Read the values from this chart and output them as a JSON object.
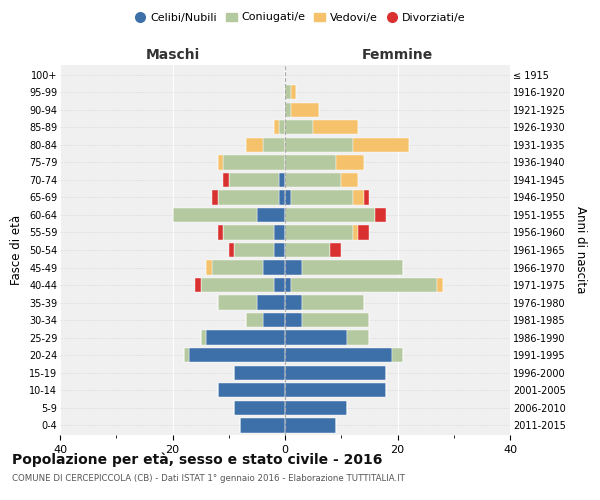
{
  "age_groups": [
    "0-4",
    "5-9",
    "10-14",
    "15-19",
    "20-24",
    "25-29",
    "30-34",
    "35-39",
    "40-44",
    "45-49",
    "50-54",
    "55-59",
    "60-64",
    "65-69",
    "70-74",
    "75-79",
    "80-84",
    "85-89",
    "90-94",
    "95-99",
    "100+"
  ],
  "birth_years": [
    "2011-2015",
    "2006-2010",
    "2001-2005",
    "1996-2000",
    "1991-1995",
    "1986-1990",
    "1981-1985",
    "1976-1980",
    "1971-1975",
    "1966-1970",
    "1961-1965",
    "1956-1960",
    "1951-1955",
    "1946-1950",
    "1941-1945",
    "1936-1940",
    "1931-1935",
    "1926-1930",
    "1921-1925",
    "1916-1920",
    "≤ 1915"
  ],
  "colors": {
    "celibi": "#3d6fa8",
    "coniugati": "#b5c9a0",
    "vedovi": "#f5c26b",
    "divorziati": "#d93030"
  },
  "maschi": {
    "celibi": [
      8,
      9,
      12,
      9,
      17,
      14,
      4,
      5,
      2,
      4,
      2,
      2,
      5,
      1,
      1,
      0,
      0,
      0,
      0,
      0,
      0
    ],
    "coniugati": [
      0,
      0,
      0,
      0,
      1,
      1,
      3,
      7,
      13,
      9,
      7,
      9,
      15,
      11,
      9,
      11,
      4,
      1,
      0,
      0,
      0
    ],
    "vedovi": [
      0,
      0,
      0,
      0,
      0,
      0,
      0,
      0,
      0,
      1,
      0,
      0,
      0,
      0,
      0,
      1,
      3,
      1,
      0,
      0,
      0
    ],
    "divorziati": [
      0,
      0,
      0,
      0,
      0,
      0,
      0,
      0,
      1,
      0,
      1,
      1,
      0,
      1,
      1,
      0,
      0,
      0,
      0,
      0,
      0
    ]
  },
  "femmine": {
    "celibi": [
      9,
      11,
      18,
      18,
      19,
      11,
      3,
      3,
      1,
      3,
      0,
      0,
      0,
      1,
      0,
      0,
      0,
      0,
      0,
      0,
      0
    ],
    "coniugati": [
      0,
      0,
      0,
      0,
      2,
      4,
      12,
      11,
      26,
      18,
      8,
      12,
      16,
      11,
      10,
      9,
      12,
      5,
      1,
      1,
      0
    ],
    "vedovi": [
      0,
      0,
      0,
      0,
      0,
      0,
      0,
      0,
      1,
      0,
      0,
      1,
      0,
      2,
      3,
      5,
      10,
      8,
      5,
      1,
      0
    ],
    "divorziati": [
      0,
      0,
      0,
      0,
      0,
      0,
      0,
      0,
      0,
      0,
      2,
      2,
      2,
      1,
      0,
      0,
      0,
      0,
      0,
      0,
      0
    ]
  },
  "title": "Popolazione per età, sesso e stato civile - 2016",
  "subtitle": "COMUNE DI CERCEPICCOLA (CB) - Dati ISTAT 1° gennaio 2016 - Elaborazione TUTTITALIA.IT",
  "ylabel_left": "Fasce di età",
  "ylabel_right": "Anni di nascita",
  "xlabel_left": "Maschi",
  "xlabel_right": "Femmine",
  "xlim": 40,
  "legend_labels": [
    "Celibi/Nubili",
    "Coniugati/e",
    "Vedovi/e",
    "Divorziati/e"
  ],
  "bg_color": "#ffffff",
  "grid_color": "#cccccc"
}
